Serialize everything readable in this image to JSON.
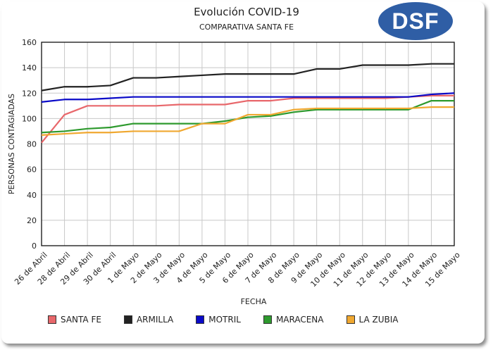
{
  "header": {
    "title": "Evolución COVID-19",
    "subtitle": "COMPARATIVA SANTA FE",
    "logo_text": "DSF",
    "logo_color": "#2f5ea5"
  },
  "chart_data": {
    "type": "line",
    "title": "Evolución COVID-19",
    "subtitle": "COMPARATIVA SANTA FE",
    "xlabel": "FECHA",
    "ylabel": "PERSONAS CONTAGIADAS",
    "ylim": [
      0,
      160
    ],
    "yticks": [
      0,
      20,
      40,
      60,
      80,
      100,
      120,
      140,
      160
    ],
    "grid": true,
    "legend_position": "bottom",
    "categories": [
      "26 de Abril",
      "28 de Abril",
      "29 de Abril",
      "30 de Abril",
      "1 de Mayo",
      "2 de Mayo",
      "3 de Mayo",
      "4 de Mayo",
      "5 de Mayo",
      "6 de Mayo",
      "7 de Mayo",
      "8 de Mayo",
      "9 de Mayo",
      "10 de Mayo",
      "11 de Mayo",
      "12 de Mayo",
      "13 de Mayo",
      "14 de Mayo",
      "15 de Mayo"
    ],
    "series": [
      {
        "name": "SANTA FE",
        "color": "#e8676b",
        "values": [
          81,
          103,
          110,
          110,
          110,
          110,
          111,
          111,
          111,
          114,
          114,
          116,
          116,
          116,
          116,
          116,
          117,
          118,
          118
        ]
      },
      {
        "name": "ARMILLA",
        "color": "#222222",
        "values": [
          122,
          125,
          125,
          126,
          132,
          132,
          133,
          134,
          135,
          135,
          135,
          135,
          139,
          139,
          142,
          142,
          142,
          143,
          143
        ]
      },
      {
        "name": "MOTRIL",
        "color": "#0a0ac8",
        "values": [
          113,
          115,
          115,
          116,
          117,
          117,
          117,
          117,
          117,
          117,
          117,
          117,
          117,
          117,
          117,
          117,
          117,
          119,
          120
        ]
      },
      {
        "name": "MARACENA",
        "color": "#2e9a2e",
        "values": [
          89,
          90,
          92,
          93,
          96,
          96,
          96,
          96,
          98,
          101,
          102,
          105,
          107,
          107,
          107,
          107,
          107,
          114,
          114
        ]
      },
      {
        "name": "LA ZUBIA",
        "color": "#f0a830",
        "values": [
          87,
          88,
          89,
          89,
          90,
          90,
          90,
          96,
          96,
          103,
          103,
          107,
          108,
          108,
          108,
          108,
          108,
          109,
          109
        ]
      }
    ]
  }
}
